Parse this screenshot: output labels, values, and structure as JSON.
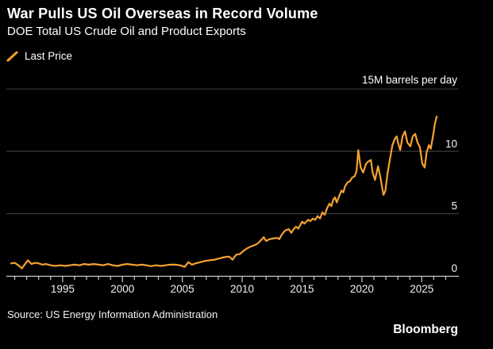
{
  "header": {
    "title": "War Pulls US Oil Overseas in Record Volume",
    "subtitle": "DOE Total US Crude Oil and Product Exports"
  },
  "legend": {
    "label": "Last Price",
    "marker_color": "#F5A131"
  },
  "footer": {
    "source": "Source: US Energy Information Administration",
    "brand": "Bloomberg"
  },
  "colors": {
    "background": "#000000",
    "accent_orange": "#F5A131",
    "gridline": "#333333",
    "axis": "#c9c9c9",
    "text": "#ffffff",
    "tick_label": "#f2f2f2"
  },
  "chart_data": {
    "type": "line",
    "title": "War Pulls US Oil Overseas in Record Volume",
    "subtitle": "DOE Total US Crude Oil and Product Exports",
    "unit_label": "15M barrels per day",
    "xlabel": "",
    "ylabel": "M barrels per day",
    "xlim": [
      1990.3,
      2028.1
    ],
    "ylim": [
      0,
      15
    ],
    "grid": "horizontal",
    "legend_position": "top-left",
    "yticks": [
      0,
      5,
      10,
      15
    ],
    "ytick_labels": [
      "0",
      "5",
      "10"
    ],
    "xtick_labeled_years": [
      1995,
      2000,
      2005,
      2010,
      2015,
      2020,
      2025
    ],
    "minor_tick_years": [
      1991,
      2027
    ],
    "series": [
      {
        "name": "Last Price",
        "color": "#F5A131",
        "x": [
          1990.7,
          1991.0,
          1991.3,
          1991.6,
          1991.9,
          1992.1,
          1992.4,
          1992.7,
          1993.0,
          1993.3,
          1993.6,
          1994.0,
          1994.4,
          1994.8,
          1995.2,
          1995.6,
          1996.0,
          1996.4,
          1996.8,
          1997.2,
          1997.6,
          1998.0,
          1998.4,
          1998.8,
          1999.2,
          1999.6,
          2000.0,
          2000.4,
          2000.8,
          2001.2,
          2001.6,
          2002.0,
          2002.4,
          2002.8,
          2003.2,
          2003.6,
          2004.0,
          2004.4,
          2004.8,
          2005.2,
          2005.5,
          2005.8,
          2006.1,
          2006.5,
          2006.9,
          2007.3,
          2007.7,
          2008.1,
          2008.5,
          2008.9,
          2009.2,
          2009.5,
          2009.8,
          2010.1,
          2010.4,
          2010.7,
          2011.0,
          2011.3,
          2011.6,
          2011.8,
          2012.0,
          2012.3,
          2012.6,
          2012.9,
          2013.1,
          2013.3,
          2013.6,
          2013.9,
          2014.1,
          2014.3,
          2014.5,
          2014.7,
          2015.0,
          2015.2,
          2015.5,
          2015.7,
          2015.9,
          2016.1,
          2016.3,
          2016.5,
          2016.7,
          2016.9,
          2017.1,
          2017.3,
          2017.45,
          2017.6,
          2017.75,
          2017.9,
          2018.1,
          2018.3,
          2018.45,
          2018.6,
          2018.8,
          2019.0,
          2019.2,
          2019.4,
          2019.55,
          2019.7,
          2019.9,
          2020.1,
          2020.35,
          2020.55,
          2020.75,
          2020.9,
          2021.1,
          2021.35,
          2021.55,
          2021.8,
          2021.95,
          2022.15,
          2022.35,
          2022.55,
          2022.75,
          2022.9,
          2023.05,
          2023.2,
          2023.4,
          2023.6,
          2023.8,
          2024.05,
          2024.25,
          2024.45,
          2024.65,
          2024.85,
          2025.05,
          2025.25,
          2025.4,
          2025.6,
          2025.75,
          2025.95,
          2026.1,
          2026.25
        ],
        "values": [
          1.0,
          1.05,
          0.85,
          0.6,
          1.0,
          1.25,
          0.95,
          1.05,
          1.0,
          0.9,
          0.95,
          0.85,
          0.8,
          0.85,
          0.8,
          0.85,
          0.9,
          0.85,
          0.95,
          0.9,
          0.95,
          0.9,
          0.85,
          0.95,
          0.85,
          0.8,
          0.9,
          0.95,
          0.9,
          0.85,
          0.9,
          0.85,
          0.78,
          0.85,
          0.8,
          0.85,
          0.9,
          0.9,
          0.85,
          0.72,
          1.1,
          0.9,
          1.0,
          1.1,
          1.2,
          1.25,
          1.3,
          1.4,
          1.5,
          1.55,
          1.3,
          1.7,
          1.75,
          2.0,
          2.2,
          2.35,
          2.45,
          2.6,
          2.9,
          3.1,
          2.8,
          2.95,
          3.0,
          3.05,
          2.95,
          3.3,
          3.65,
          3.75,
          3.45,
          3.75,
          3.95,
          3.8,
          4.35,
          4.2,
          4.5,
          4.4,
          4.6,
          4.5,
          4.8,
          4.6,
          5.1,
          4.9,
          5.45,
          5.8,
          5.6,
          6.1,
          6.3,
          5.9,
          6.4,
          6.85,
          6.7,
          7.2,
          7.5,
          7.6,
          7.9,
          8.0,
          8.4,
          10.1,
          8.7,
          8.3,
          9.0,
          9.2,
          9.3,
          8.3,
          7.7,
          8.8,
          7.9,
          6.5,
          6.8,
          8.3,
          9.4,
          10.5,
          11.0,
          11.2,
          10.6,
          10.1,
          11.2,
          11.6,
          10.7,
          10.4,
          11.2,
          11.4,
          10.7,
          10.3,
          9.0,
          8.7,
          9.9,
          10.5,
          10.2,
          11.3,
          12.2,
          12.8
        ]
      }
    ]
  }
}
